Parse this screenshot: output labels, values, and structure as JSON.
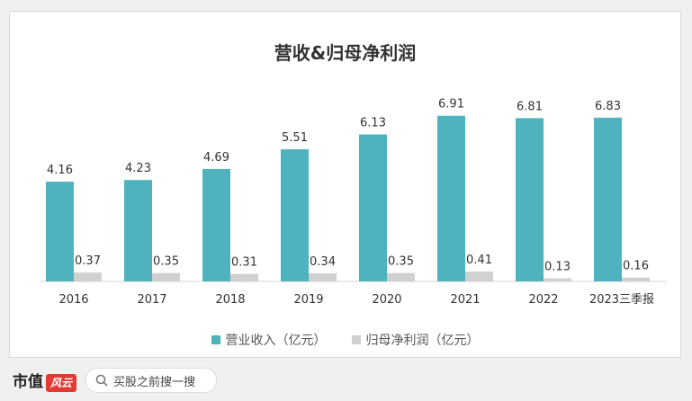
{
  "chart_data": {
    "type": "bar",
    "title": "营收&归母净利润",
    "categories": [
      "2016",
      "2017",
      "2018",
      "2019",
      "2020",
      "2021",
      "2022",
      "2023三季报"
    ],
    "series": [
      {
        "name": "营业收入（亿元）",
        "values": [
          4.16,
          4.23,
          4.69,
          5.51,
          6.13,
          6.91,
          6.81,
          6.83
        ],
        "color": "#4fb3bf"
      },
      {
        "name": "归母净利润（亿元）",
        "values": [
          0.37,
          0.35,
          0.31,
          0.34,
          0.35,
          0.41,
          0.13,
          0.16
        ],
        "color": "#d0d0d0"
      }
    ],
    "ylim": [
      0,
      7.5
    ],
    "grid": false,
    "legend_position": "bottom"
  },
  "footer": {
    "brand": "市值",
    "brand_mark": "风云",
    "search_placeholder": "买股之前搜一搜",
    "search_icon": "search-icon"
  }
}
